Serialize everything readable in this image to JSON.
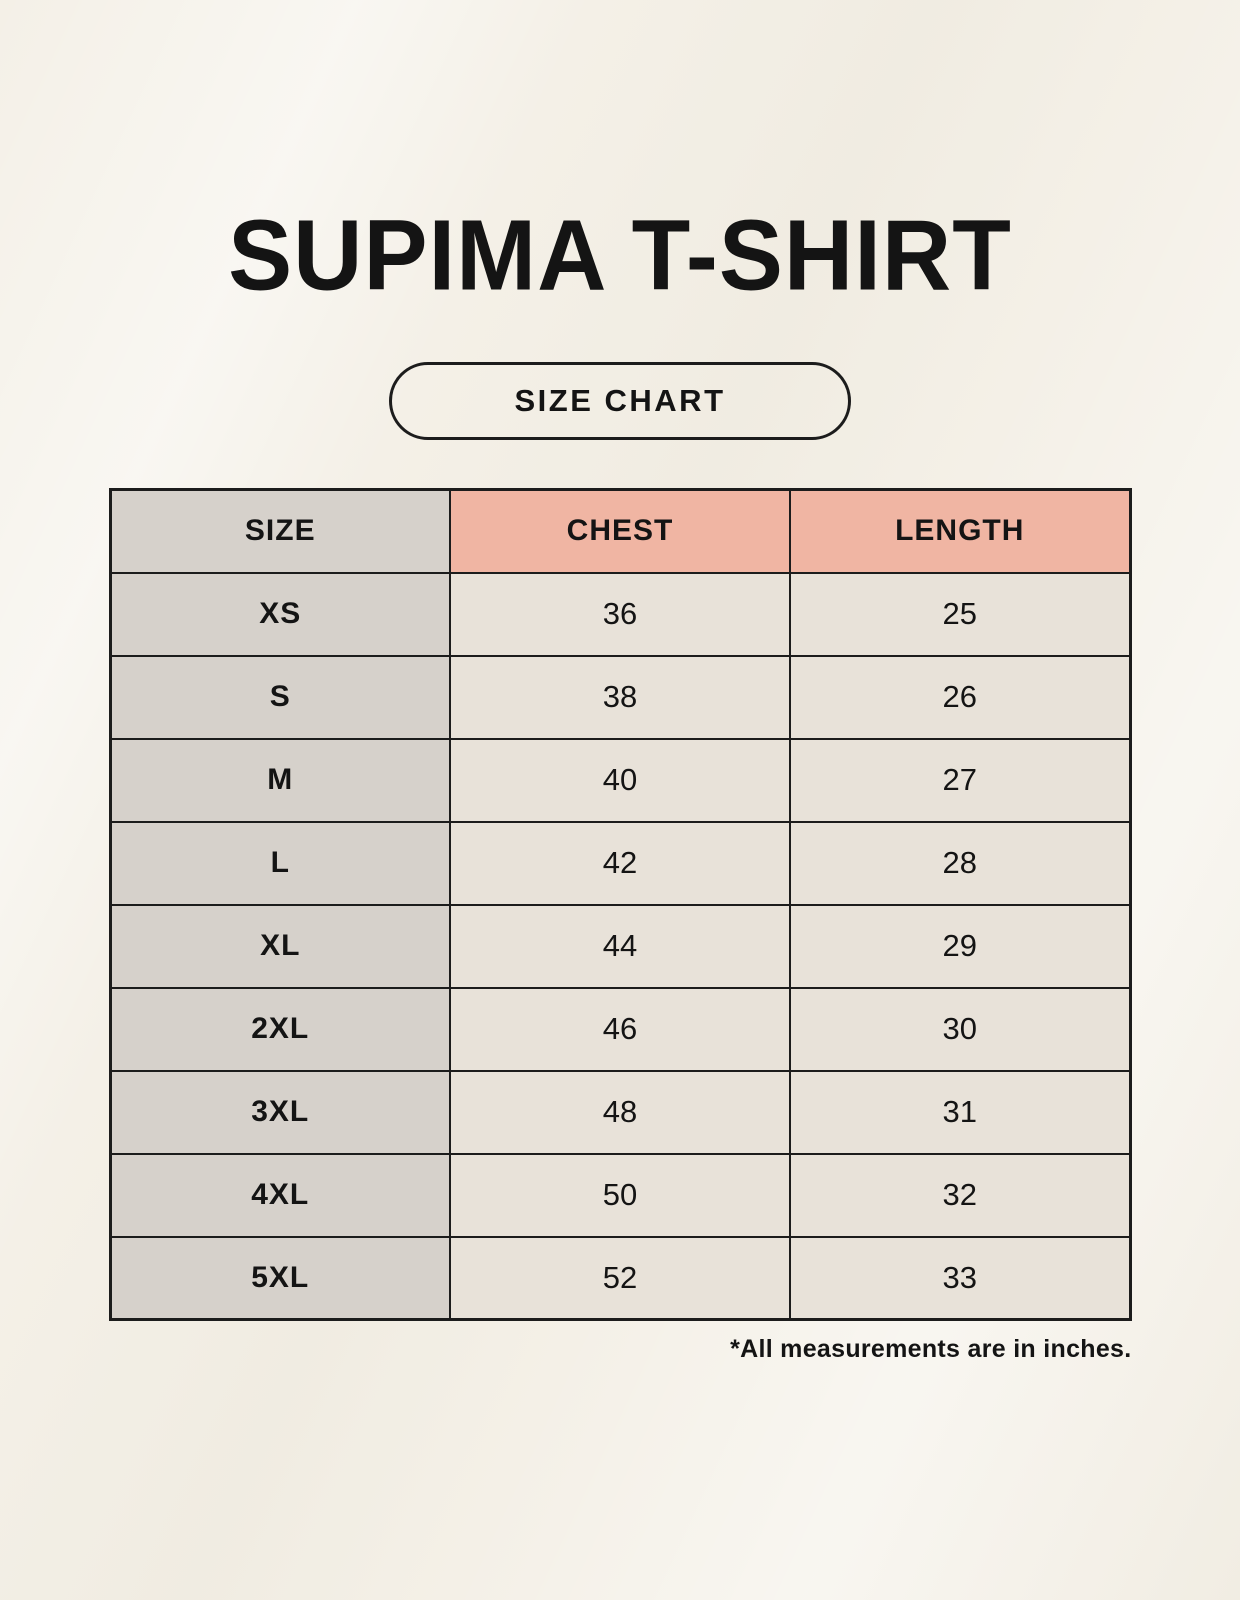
{
  "page": {
    "title": "SUPIMA T-SHIRT",
    "badge_label": "SIZE CHART",
    "footnote": "*All measurements are in inches."
  },
  "table": {
    "columns": [
      "SIZE",
      "CHEST",
      "LENGTH"
    ],
    "rows": [
      {
        "size": "XS",
        "chest": "36",
        "length": "25"
      },
      {
        "size": "S",
        "chest": "38",
        "length": "26"
      },
      {
        "size": "M",
        "chest": "40",
        "length": "27"
      },
      {
        "size": "L",
        "chest": "42",
        "length": "28"
      },
      {
        "size": "XL",
        "chest": "44",
        "length": "29"
      },
      {
        "size": "2XL",
        "chest": "46",
        "length": "30"
      },
      {
        "size": "3XL",
        "chest": "48",
        "length": "31"
      },
      {
        "size": "4XL",
        "chest": "50",
        "length": "32"
      },
      {
        "size": "5XL",
        "chest": "52",
        "length": "33"
      }
    ]
  },
  "colors": {
    "background": "#f4f0e7",
    "size-col-bg": "#d6d1cb",
    "header-measure-bg": "#f0b5a3",
    "cell-bg": "#e8e2d9",
    "border": "#1c1c1c",
    "text": "#141414"
  }
}
